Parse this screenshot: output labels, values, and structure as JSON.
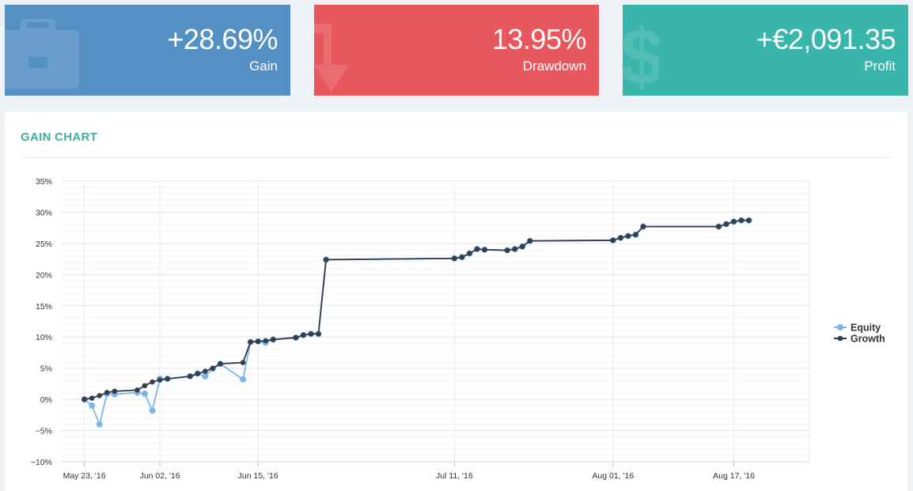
{
  "cards": {
    "gain": {
      "value": "+28.69%",
      "label": "Gain",
      "icon": "briefcase-icon",
      "color": "#5590c4"
    },
    "drawdown": {
      "value": "13.95%",
      "label": "Drawdown",
      "icon": "arrow-down-icon",
      "color": "#e8575d"
    },
    "profit": {
      "value": "+€2,091.35",
      "label": "Profit",
      "icon": "dollar-icon",
      "color": "#39b5ab"
    }
  },
  "panel": {
    "title": "GAIN CHART"
  },
  "chart_data": {
    "type": "line",
    "title": "",
    "ylim": [
      -10,
      35
    ],
    "yticks": [
      -10,
      -5,
      0,
      5,
      10,
      15,
      20,
      25,
      30,
      35
    ],
    "ytick_labels": [
      "−10%",
      "−5%",
      "0%",
      "5%",
      "10%",
      "15%",
      "20%",
      "25%",
      "30%",
      "35%"
    ],
    "xlim": [
      "2016-05-20",
      "2016-08-27"
    ],
    "xtick_labels": [
      {
        "date": "2016-05-23",
        "label": "May 23, '16"
      },
      {
        "date": "2016-06-02",
        "label": "Jun 02, '16"
      },
      {
        "date": "2016-06-15",
        "label": "Jun 15, '16"
      },
      {
        "date": "2016-07-11",
        "label": "Jul 11, '16"
      },
      {
        "date": "2016-08-01",
        "label": "Aug 01, '16"
      },
      {
        "date": "2016-08-17",
        "label": "Aug 17, '16"
      }
    ],
    "grid": true,
    "legend_position": "right",
    "x": [
      "2016-05-23",
      "2016-05-24",
      "2016-05-25",
      "2016-05-26",
      "2016-05-27",
      "2016-05-30",
      "2016-05-31",
      "2016-06-01",
      "2016-06-02",
      "2016-06-03",
      "2016-06-06",
      "2016-06-07",
      "2016-06-08",
      "2016-06-09",
      "2016-06-10",
      "2016-06-13",
      "2016-06-14",
      "2016-06-15",
      "2016-06-16",
      "2016-06-17",
      "2016-06-20",
      "2016-06-21",
      "2016-06-22",
      "2016-06-23",
      "2016-06-24",
      "2016-07-11",
      "2016-07-12",
      "2016-07-13",
      "2016-07-14",
      "2016-07-15",
      "2016-07-18",
      "2016-07-19",
      "2016-07-20",
      "2016-07-21",
      "2016-08-01",
      "2016-08-02",
      "2016-08-03",
      "2016-08-04",
      "2016-08-05",
      "2016-08-15",
      "2016-08-16",
      "2016-08-17",
      "2016-08-18",
      "2016-08-19"
    ],
    "series": [
      {
        "name": "Equity",
        "color": "#7cb5e8",
        "values": [
          0.0,
          -1.0,
          -4.0,
          0.9,
          0.8,
          1.1,
          0.9,
          -1.8,
          3.3,
          3.3,
          3.7,
          4.2,
          3.7,
          4.9,
          5.7,
          3.2,
          9.2,
          9.3,
          9.1,
          9.6,
          9.9,
          10.3,
          10.5,
          10.5,
          22.4,
          22.6,
          22.8,
          23.4,
          24.1,
          24.0,
          23.9,
          24.1,
          24.5,
          25.4,
          25.5,
          25.9,
          26.2,
          26.4,
          27.7,
          27.7,
          28.1,
          28.5,
          28.7,
          28.7
        ]
      },
      {
        "name": "Growth",
        "color": "#333f4f",
        "values": [
          0.0,
          0.2,
          0.6,
          1.1,
          1.3,
          1.5,
          2.2,
          2.8,
          3.1,
          3.3,
          3.7,
          4.1,
          4.5,
          5.0,
          5.7,
          5.9,
          9.2,
          9.3,
          9.4,
          9.6,
          9.9,
          10.3,
          10.5,
          10.5,
          22.4,
          22.6,
          22.8,
          23.4,
          24.1,
          24.0,
          23.9,
          24.1,
          24.5,
          25.4,
          25.5,
          25.9,
          26.2,
          26.4,
          27.7,
          27.7,
          28.1,
          28.5,
          28.7,
          28.7
        ]
      }
    ]
  }
}
